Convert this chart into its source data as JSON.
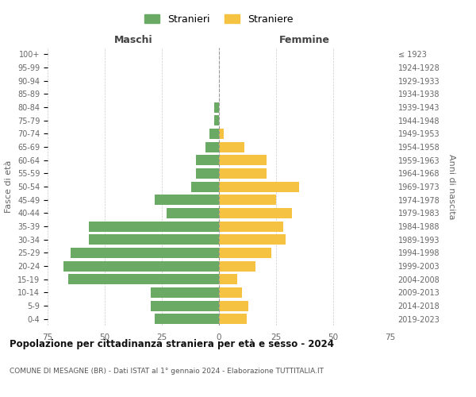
{
  "age_groups": [
    "0-4",
    "5-9",
    "10-14",
    "15-19",
    "20-24",
    "25-29",
    "30-34",
    "35-39",
    "40-44",
    "45-49",
    "50-54",
    "55-59",
    "60-64",
    "65-69",
    "70-74",
    "75-79",
    "80-84",
    "85-89",
    "90-94",
    "95-99",
    "100+"
  ],
  "birth_years": [
    "2019-2023",
    "2014-2018",
    "2009-2013",
    "2004-2008",
    "1999-2003",
    "1994-1998",
    "1989-1993",
    "1984-1988",
    "1979-1983",
    "1974-1978",
    "1969-1973",
    "1964-1968",
    "1959-1963",
    "1954-1958",
    "1949-1953",
    "1944-1948",
    "1939-1943",
    "1934-1938",
    "1929-1933",
    "1924-1928",
    "≤ 1923"
  ],
  "males": [
    28,
    30,
    30,
    66,
    68,
    65,
    57,
    57,
    23,
    28,
    12,
    10,
    10,
    6,
    4,
    2,
    2,
    0,
    0,
    0,
    0
  ],
  "females": [
    12,
    13,
    10,
    8,
    16,
    23,
    29,
    28,
    32,
    25,
    35,
    21,
    21,
    11,
    2,
    0,
    0,
    0,
    0,
    0,
    0
  ],
  "male_color": "#6aaa64",
  "female_color": "#f5c242",
  "grid_color": "#cccccc",
  "title": "Popolazione per cittadinanza straniera per età e sesso - 2024",
  "subtitle": "COMUNE DI MESAGNE (BR) - Dati ISTAT al 1° gennaio 2024 - Elaborazione TUTTITALIA.IT",
  "xlabel_left": "Maschi",
  "xlabel_right": "Femmine",
  "ylabel_left": "Fasce di età",
  "ylabel_right": "Anni di nascita",
  "xlim": 75,
  "legend_labels": [
    "Stranieri",
    "Straniere"
  ]
}
